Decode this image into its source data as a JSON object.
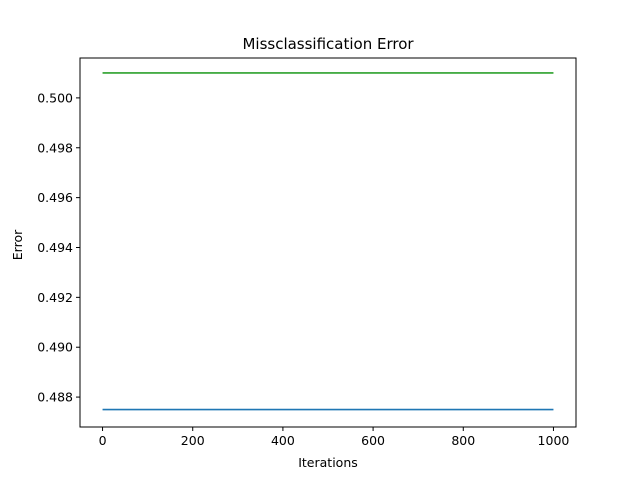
{
  "chart_data": {
    "type": "line",
    "title": "Missclassification Error",
    "xlabel": "Iterations",
    "ylabel": "Error",
    "xlim": [
      -50,
      1050
    ],
    "ylim": [
      0.4868,
      0.5016
    ],
    "x_ticks": [
      0,
      200,
      400,
      600,
      800,
      1000
    ],
    "x_tick_labels": [
      "0",
      "200",
      "400",
      "600",
      "800",
      "1000"
    ],
    "y_ticks": [
      0.488,
      0.49,
      0.492,
      0.494,
      0.496,
      0.498,
      0.5
    ],
    "y_tick_labels": [
      "0.488",
      "0.490",
      "0.492",
      "0.494",
      "0.496",
      "0.498",
      "0.500"
    ],
    "grid": false,
    "series": [
      {
        "color": "#1f77b4",
        "x": [
          0,
          1000
        ],
        "y": [
          0.4875,
          0.4875
        ]
      },
      {
        "color": "#2ca02c",
        "x": [
          0,
          1000
        ],
        "y": [
          0.501,
          0.501
        ]
      }
    ]
  }
}
